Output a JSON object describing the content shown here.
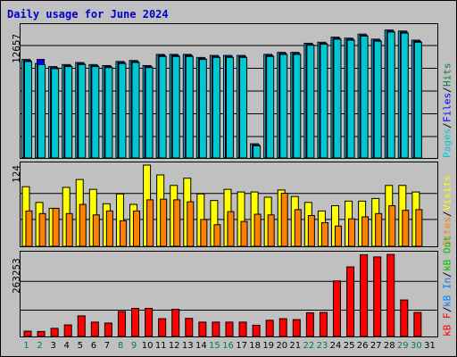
{
  "title": "Daily usage for June 2024",
  "colors": {
    "background": "#c0c0c0",
    "title": "#0000cc",
    "hits": "#00ccff",
    "files": "#0000ff",
    "pages": "#00c8d2",
    "visits": "#ffff00",
    "sites": "#ff8000",
    "kbytes": "#ff0000",
    "weekday_label": "#000000",
    "weekend_label": "#008040",
    "grid": "#000000"
  },
  "panels": {
    "hits": {
      "ymax_label": "12657",
      "legend": [
        {
          "text": "Pages",
          "color": "#00c8d2"
        },
        {
          "text": "Files",
          "color": "#0000ff"
        },
        {
          "text": "Hits",
          "color": "#008040"
        }
      ]
    },
    "visits": {
      "ymax_label": "124",
      "legend": [
        {
          "text": "Sites",
          "color": "#ff8000"
        },
        {
          "text": "Visits",
          "color": "#ffff00"
        }
      ]
    },
    "kbf": {
      "ymax_label": "263253",
      "legend": [
        {
          "text": "kB F",
          "color": "#ff0000"
        },
        {
          "text": "kB In",
          "color": "#0080ff"
        },
        {
          "text": "kB Out",
          "color": "#00c000"
        }
      ]
    }
  },
  "chart_data": {
    "type": "bar",
    "title": "Daily usage for June 2024",
    "categories": [
      "1",
      "2",
      "3",
      "4",
      "5",
      "6",
      "7",
      "8",
      "9",
      "10",
      "11",
      "12",
      "13",
      "14",
      "15",
      "16",
      "17",
      "18",
      "19",
      "20",
      "21",
      "22",
      "23",
      "24",
      "25",
      "26",
      "27",
      "28",
      "29",
      "30",
      "31"
    ],
    "weekend_days": [
      "1",
      "2",
      "8",
      "9",
      "15",
      "16",
      "22",
      "23",
      "29",
      "30"
    ],
    "hits_ymax": 12657,
    "visits_ymax": 124,
    "kbf_ymax": 263253,
    "series": [
      {
        "name": "Hits",
        "panel": "hits",
        "values": [
          9700,
          9300,
          9000,
          9200,
          9400,
          9200,
          9100,
          9500,
          9600,
          9100,
          10200,
          10200,
          10200,
          9900,
          10100,
          10100,
          10100,
          1400,
          10200,
          10400,
          10400,
          11300,
          11400,
          11900,
          11800,
          12200,
          11700,
          12600,
          12500,
          11600,
          0
        ]
      },
      {
        "name": "Files",
        "panel": "hits",
        "values": [
          9600,
          9700,
          8900,
          9100,
          9300,
          9100,
          9000,
          9400,
          9500,
          9000,
          10100,
          10100,
          10100,
          9800,
          10000,
          10000,
          10000,
          1300,
          10100,
          10300,
          10300,
          11200,
          11300,
          11800,
          11700,
          12100,
          11600,
          12500,
          12400,
          11500,
          0
        ]
      },
      {
        "name": "Pages",
        "panel": "hits",
        "values": [
          9500,
          9200,
          8800,
          9000,
          9200,
          9000,
          8900,
          9300,
          9400,
          8900,
          10000,
          10000,
          10000,
          9700,
          9900,
          9900,
          9900,
          1200,
          10000,
          10200,
          10200,
          11100,
          11200,
          11700,
          11600,
          12000,
          11500,
          12400,
          12300,
          11400,
          0
        ]
      },
      {
        "name": "Visits",
        "panel": "visits",
        "values": [
          91,
          67,
          58,
          90,
          102,
          87,
          65,
          80,
          64,
          124,
          109,
          93,
          104,
          80,
          70,
          87,
          83,
          83,
          75,
          86,
          76,
          67,
          54,
          62,
          69,
          69,
          73,
          93,
          93,
          83,
          0
        ]
      },
      {
        "name": "Sites",
        "panel": "visits",
        "values": [
          54,
          50,
          58,
          50,
          64,
          48,
          54,
          39,
          54,
          71,
          72,
          71,
          68,
          41,
          33,
          53,
          38,
          49,
          48,
          81,
          56,
          47,
          36,
          31,
          42,
          45,
          50,
          62,
          55,
          56,
          0
        ]
      },
      {
        "name": "kB F",
        "panel": "kbf",
        "values": [
          17000,
          16000,
          26000,
          37000,
          66000,
          46000,
          43000,
          80000,
          90000,
          90000,
          57000,
          87000,
          58000,
          46000,
          46000,
          46000,
          46000,
          36000,
          52000,
          57000,
          54000,
          76000,
          77000,
          178000,
          223000,
          262000,
          255000,
          263000,
          117000,
          77000,
          0
        ]
      }
    ]
  }
}
